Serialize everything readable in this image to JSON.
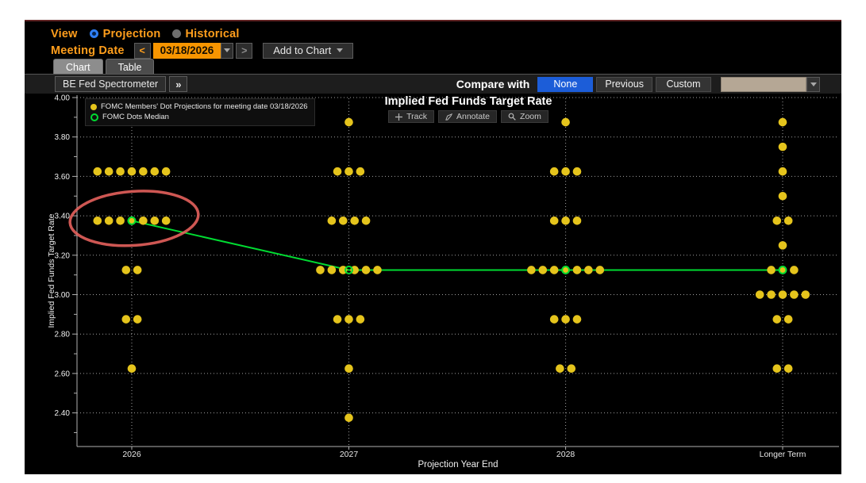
{
  "header": {
    "view_label": "View",
    "view_options": [
      {
        "label": "Projection",
        "selected": true
      },
      {
        "label": "Historical",
        "selected": false
      }
    ],
    "meeting_date_label": "Meeting Date",
    "meeting_date_value": "03/18/2026",
    "prev_arrow": "<",
    "next_arrow": ">",
    "add_to_chart_label": "Add to Chart",
    "tabs": [
      {
        "label": "Chart",
        "active": true
      },
      {
        "label": "Table",
        "active": false
      }
    ],
    "spectrometer_label": "BE Fed Spectrometer",
    "expand_label": "»",
    "compare_with_label": "Compare with",
    "compare_options": [
      "None",
      "Previous",
      "Custom"
    ],
    "compare_selected": "None"
  },
  "chart": {
    "title": "Implied Fed Funds Target Rate",
    "tools": [
      {
        "icon": "track-icon",
        "label": "Track"
      },
      {
        "icon": "annotate-icon",
        "label": "Annotate"
      },
      {
        "icon": "zoom-icon",
        "label": "Zoom"
      }
    ],
    "legend": [
      {
        "marker": "filled-dot",
        "color": "#e5c41c",
        "label": "FOMC Members' Dot Projections for meeting date 03/18/2026"
      },
      {
        "marker": "open-ring",
        "color": "#00dc32",
        "label": "FOMC Dots Median"
      }
    ]
  },
  "chart_data": {
    "type": "scatter",
    "title": "Implied Fed Funds Target Rate",
    "xlabel": "Projection Year End",
    "ylabel": "Implied Fed Funds Target Rate",
    "categories": [
      "2026",
      "2027",
      "2028",
      "Longer Term"
    ],
    "y_axis": {
      "min": 2.25,
      "max": 4.0,
      "major_tick_labels": [
        "4.00",
        "3.80",
        "3.60",
        "3.40",
        "3.20",
        "3.00",
        "2.80",
        "2.60",
        "2.40"
      ],
      "major_tick_values": [
        4.0,
        3.8,
        3.6,
        3.4,
        3.2,
        3.0,
        2.8,
        2.6,
        2.4
      ],
      "minor_tick_values": [
        3.9,
        3.7,
        3.5,
        3.3,
        3.1,
        2.9,
        2.7,
        2.5,
        2.3
      ]
    },
    "grid": "dotted",
    "dot_projections": [
      {
        "category": "2026",
        "dots": [
          {
            "rate": 3.625,
            "count": 7
          },
          {
            "rate": 3.375,
            "count": 7
          },
          {
            "rate": 3.125,
            "count": 2
          },
          {
            "rate": 2.875,
            "count": 2
          },
          {
            "rate": 2.625,
            "count": 1
          }
        ]
      },
      {
        "category": "2027",
        "dots": [
          {
            "rate": 3.875,
            "count": 1
          },
          {
            "rate": 3.625,
            "count": 3
          },
          {
            "rate": 3.375,
            "count": 4
          },
          {
            "rate": 3.125,
            "count": 6
          },
          {
            "rate": 2.875,
            "count": 3
          },
          {
            "rate": 2.625,
            "count": 1
          },
          {
            "rate": 2.375,
            "count": 1
          }
        ]
      },
      {
        "category": "2028",
        "dots": [
          {
            "rate": 3.875,
            "count": 1
          },
          {
            "rate": 3.625,
            "count": 3
          },
          {
            "rate": 3.375,
            "count": 3
          },
          {
            "rate": 3.125,
            "count": 7
          },
          {
            "rate": 2.875,
            "count": 3
          },
          {
            "rate": 2.625,
            "count": 2
          }
        ]
      },
      {
        "category": "Longer Term",
        "dots": [
          {
            "rate": 3.875,
            "count": 1
          },
          {
            "rate": 3.75,
            "count": 1
          },
          {
            "rate": 3.625,
            "count": 1
          },
          {
            "rate": 3.5,
            "count": 1
          },
          {
            "rate": 3.375,
            "count": 2
          },
          {
            "rate": 3.25,
            "count": 1
          },
          {
            "rate": 3.125,
            "count": 3
          },
          {
            "rate": 3.0,
            "count": 5
          },
          {
            "rate": 2.875,
            "count": 2
          },
          {
            "rate": 2.625,
            "count": 2
          }
        ]
      }
    ],
    "median_series": {
      "name": "FOMC Dots Median",
      "values": [
        3.375,
        3.125,
        3.125,
        3.125
      ]
    },
    "annotation": {
      "type": "ellipse",
      "category": "2026",
      "rate": 3.375,
      "color": "#e4605c"
    },
    "colors": {
      "dots": "#e5c41c",
      "median": "#00dc32",
      "grid": "#a0a0a0",
      "axis": "#b0b0b0",
      "tick_text": "#f0f0f0"
    }
  }
}
